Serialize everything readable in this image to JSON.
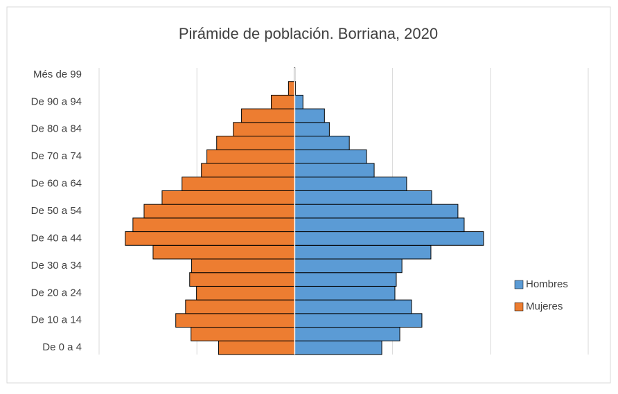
{
  "chart_data": {
    "type": "pyramid",
    "title": "Pirámide de población. Borriana, 2020",
    "categories": [
      "De 0 a 4",
      null,
      "De 10 a 14",
      null,
      "De 20 a 24",
      null,
      "De 30 a 34",
      null,
      "De 40 a 44",
      null,
      "De 50 a 54",
      null,
      "De 60 a 64",
      null,
      "De 70 a 74",
      null,
      "De 80 a 84",
      null,
      "De 90 a 94",
      null,
      "Més de 99"
    ],
    "series": [
      {
        "name": "Hombres",
        "color": "#5b9bd5",
        "side": "right",
        "values": [
          445,
          537,
          650,
          597,
          512,
          519,
          548,
          696,
          965,
          866,
          834,
          700,
          572,
          406,
          367,
          279,
          177,
          152,
          42,
          4,
          1
        ]
      },
      {
        "name": "Mujeres",
        "color": "#ed7d31",
        "side": "left",
        "values": [
          389,
          530,
          608,
          558,
          502,
          537,
          527,
          724,
          866,
          827,
          770,
          678,
          576,
          477,
          449,
          399,
          314,
          272,
          120,
          32,
          2
        ]
      }
    ],
    "xlim": [
      -1000,
      1500
    ],
    "xticks": [
      -1000,
      -500,
      0,
      500,
      1000,
      1500
    ],
    "grid": true,
    "legend": "right"
  }
}
